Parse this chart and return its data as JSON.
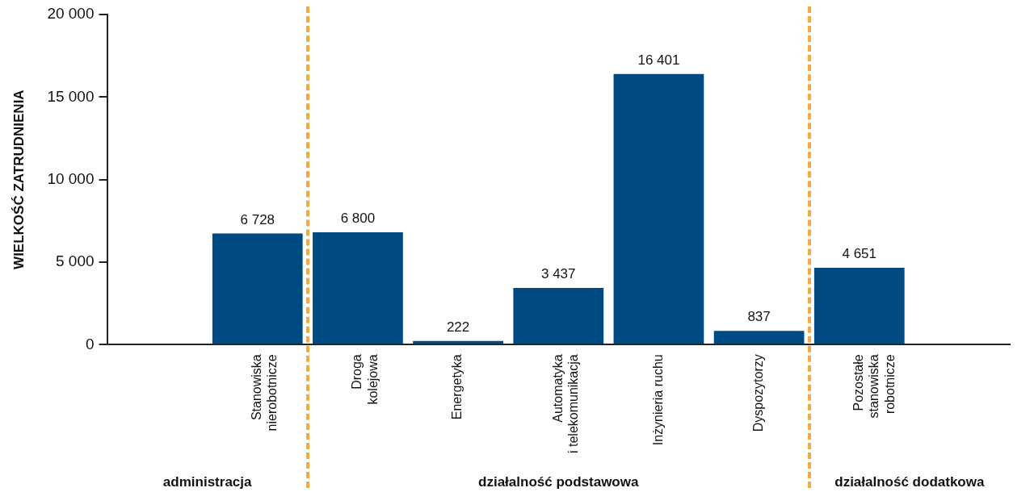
{
  "chart_data": {
    "type": "bar",
    "ylabel": "WIELKOŚĆ ZATRUDNIENIA",
    "categories": [
      null,
      "Stanowiska\nnierobotnicze",
      "Droga\nkolejowa",
      "Energetyka",
      "Automatyka\ni telekomunikacja",
      "Inżynieria ruchu",
      "Dyspozytorzy",
      "Pozostałe\nstanowiska\nrobotnicze",
      null
    ],
    "values": [
      null,
      6728,
      6800,
      222,
      3437,
      16401,
      837,
      4651,
      null
    ],
    "value_labels": [
      null,
      "6 728",
      "6 800",
      "222",
      "3 437",
      "16 401",
      "837",
      "4 651",
      null
    ],
    "color": "#004a84",
    "ylim": [
      0,
      20000
    ],
    "yticks": [
      0,
      {
        "value": 5000,
        "label": "5 000"
      },
      {
        "value": 10000,
        "label": "10 000"
      },
      {
        "value": 15000,
        "label": "15 000"
      },
      {
        "value": 20000,
        "label": "20 000"
      }
    ],
    "grid": false,
    "legend": false,
    "annotations": [
      "administracja",
      "działalność podstawowa",
      "działalność dodatkowa"
    ]
  }
}
